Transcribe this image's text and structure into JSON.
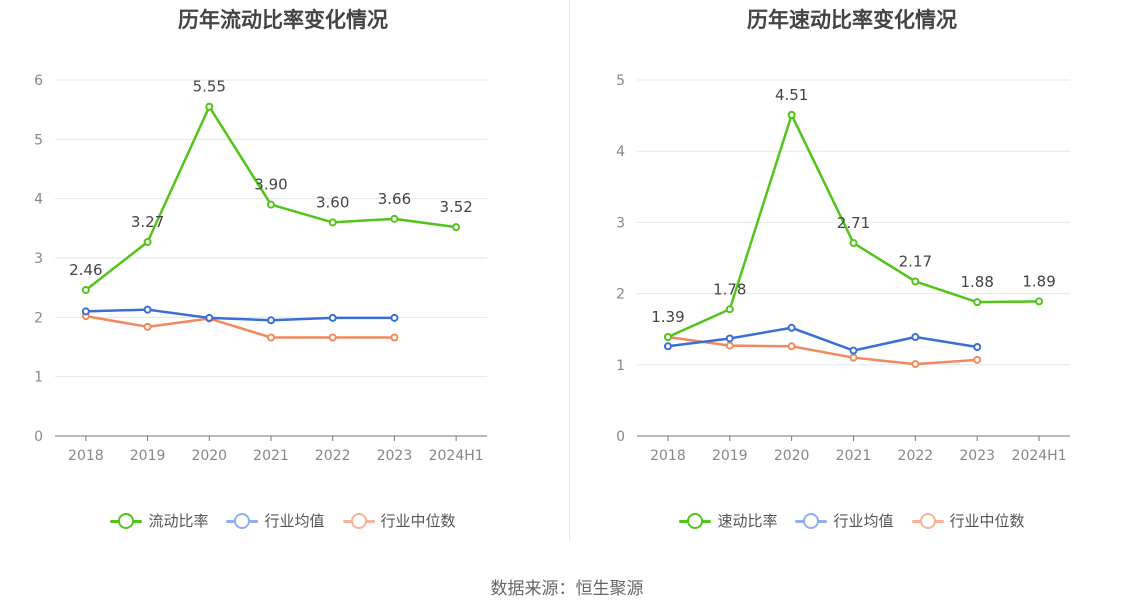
{
  "chart_data": [
    {
      "type": "line",
      "title": "历年流动比率变化情况",
      "categories": [
        "2018",
        "2019",
        "2020",
        "2021",
        "2022",
        "2023",
        "2024H1"
      ],
      "ylim": [
        0,
        6
      ],
      "yticks": [
        "0",
        "1",
        "2",
        "3",
        "4",
        "5",
        "6"
      ],
      "grid": true,
      "legend_position": "bottom",
      "series": [
        {
          "name": "流动比率",
          "color": "#52c41a",
          "values": [
            2.46,
            3.27,
            5.55,
            3.9,
            3.6,
            3.66,
            3.52
          ],
          "labels": [
            "2.46",
            "3.27",
            "5.55",
            "3.90",
            "3.60",
            "3.66",
            "3.52"
          ]
        },
        {
          "name": "行业均值",
          "color": "#3a6fd6",
          "values": [
            2.1,
            2.13,
            1.99,
            1.95,
            1.99,
            1.99,
            null
          ]
        },
        {
          "name": "行业中位数",
          "color": "#f08a5d",
          "values": [
            2.02,
            1.84,
            1.98,
            1.66,
            1.66,
            1.66,
            null
          ]
        }
      ]
    },
    {
      "type": "line",
      "title": "历年速动比率变化情况",
      "categories": [
        "2018",
        "2019",
        "2020",
        "2021",
        "2022",
        "2023",
        "2024H1"
      ],
      "ylim": [
        0,
        5
      ],
      "yticks": [
        "0",
        "1",
        "2",
        "3",
        "4",
        "5"
      ],
      "grid": true,
      "legend_position": "bottom",
      "series": [
        {
          "name": "速动比率",
          "color": "#52c41a",
          "values": [
            1.39,
            1.78,
            4.51,
            2.71,
            2.17,
            1.88,
            1.89
          ],
          "labels": [
            "1.39",
            "1.78",
            "4.51",
            "2.71",
            "2.17",
            "1.88",
            "1.89"
          ]
        },
        {
          "name": "行业均值",
          "color": "#3a6fd6",
          "values": [
            1.26,
            1.37,
            1.52,
            1.2,
            1.39,
            1.25,
            null
          ]
        },
        {
          "name": "行业中位数",
          "color": "#f08a5d",
          "values": [
            1.39,
            1.27,
            1.26,
            1.1,
            1.01,
            1.07,
            null
          ]
        }
      ]
    }
  ],
  "legend_colors": {
    "流动比率": "#52c41a",
    "速动比率": "#52c41a",
    "行业均值": "#8fb0ee",
    "行业中位数": "#f7b39a"
  },
  "source": "数据来源：恒生聚源"
}
